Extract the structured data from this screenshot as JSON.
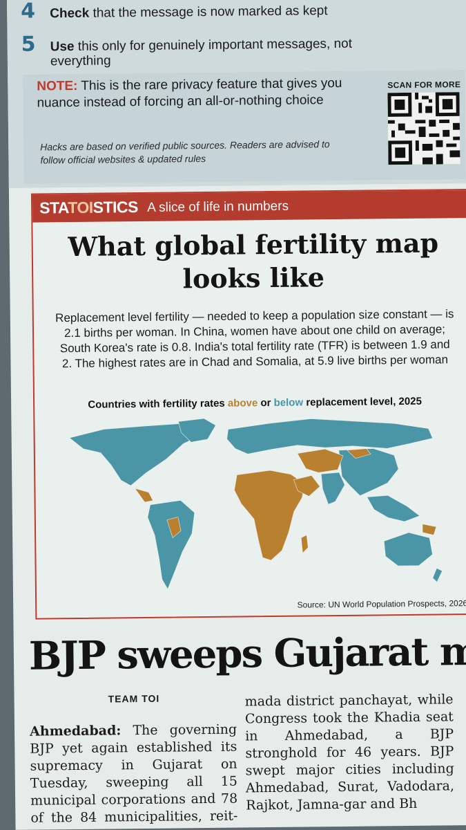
{
  "tips": {
    "step4": {
      "num": "4",
      "bold": "Check",
      "rest": "that the message is now marked as kept"
    },
    "step5": {
      "num": "5",
      "bold": "Use",
      "rest": "this only for genuinely important messages, not everything"
    },
    "note_label": "NOTE:",
    "note_text": "This is the rare privacy feature that gives you nuance instead of forcing an all-or-nothing choice",
    "disclaimer": "Hacks are based on verified public sources. Readers are advised to follow official websites & updated rules",
    "scan_label": "SCAN FOR MORE"
  },
  "statoistics": {
    "logo_a": "STA",
    "logo_toi": "TOI",
    "logo_b": "STICS",
    "tagline": "A slice of life in numbers",
    "title": "What global fertility map looks like",
    "body": "Replacement level fertility — needed to keep a population size constant — is 2.1 births per woman. In China, women have about one child on average; South Korea's rate is 0.8. India's total fertility rate (TFR) is between 1.9 and 2. The highest rates are in Chad and Somalia, at 5.9 live births per woman",
    "caption_a": "Countries with fertility rates",
    "caption_above": "above",
    "caption_or": "or",
    "caption_below": "below",
    "caption_b": "replacement level, 2025",
    "source": "Source: UN World Population Prospects, 2026",
    "colors": {
      "above": "#b9802f",
      "below": "#4a95a6"
    }
  },
  "article": {
    "headline": "BJP sweeps Gujarat mun",
    "byline": "TEAM TOI",
    "dateline": "Ahmedabad:",
    "col1": "The governing BJP yet again established its supremacy in Gujarat on Tuesday, sweeping all 15 municipal corporations and 78 of the 84 municipalities, reit-erating its",
    "col2": "mada district panchayat, while Congress took the Khadia seat in Ahmedabad, a BJP stronghold for 46 years. BJP swept major cities including Ahmedabad, Surat, Vadodara, Rajkot, Jamna-gar and Bh"
  }
}
